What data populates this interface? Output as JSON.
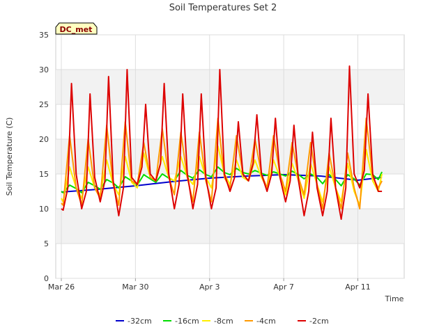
{
  "chart_data": {
    "type": "line",
    "title": "Soil Temperatures Set 2",
    "xlabel": "Time",
    "ylabel": "Soil Temperature (C)",
    "badge": "DC_met",
    "ylim": [
      0,
      35
    ],
    "yticks": [
      0,
      5,
      10,
      15,
      20,
      25,
      30,
      35
    ],
    "xlim": [
      -0.3,
      18.5
    ],
    "xticks": [
      {
        "day": 0,
        "label": "Mar 26"
      },
      {
        "day": 4,
        "label": "Mar 30"
      },
      {
        "day": 8,
        "label": "Apr 3"
      },
      {
        "day": 12,
        "label": "Apr 7"
      },
      {
        "day": 16,
        "label": "Apr 11"
      }
    ],
    "x_units": "days since Mar 26",
    "grid": true,
    "legend_position": "bottom",
    "series": [
      {
        "name": "-32cm",
        "color": "#0000cc",
        "x": [
          0,
          2,
          4,
          6,
          8,
          10,
          12,
          14,
          16,
          17.3
        ],
        "y": [
          12.4,
          12.8,
          13.3,
          13.9,
          14.4,
          14.7,
          14.9,
          14.7,
          14.1,
          14.5
        ]
      },
      {
        "name": "-16cm",
        "color": "#00dd00",
        "x": [
          0.0,
          0.1,
          0.45,
          0.8,
          1.1,
          1.45,
          1.8,
          2.1,
          2.45,
          2.8,
          3.1,
          3.45,
          3.8,
          4.1,
          4.45,
          4.8,
          5.1,
          5.45,
          5.8,
          6.1,
          6.45,
          6.8,
          7.1,
          7.45,
          7.8,
          8.1,
          8.45,
          8.8,
          9.1,
          9.45,
          9.8,
          10.1,
          10.45,
          10.8,
          11.1,
          11.45,
          11.8,
          12.1,
          12.45,
          12.8,
          13.1,
          13.45,
          13.8,
          14.1,
          14.45,
          14.8,
          15.1,
          15.45,
          15.8,
          16.1,
          16.45,
          16.8,
          17.1,
          17.3
        ],
        "y": [
          12.5,
          12.3,
          13.4,
          12.9,
          12.3,
          13.8,
          13.3,
          12.8,
          14.2,
          13.7,
          13.0,
          14.6,
          14.0,
          13.4,
          14.9,
          14.3,
          13.8,
          15.0,
          14.4,
          14.0,
          15.5,
          14.8,
          14.4,
          15.6,
          14.9,
          14.6,
          16.0,
          15.2,
          14.9,
          15.8,
          15.2,
          15.0,
          15.5,
          15.1,
          14.8,
          15.3,
          15.0,
          14.7,
          15.4,
          14.9,
          14.3,
          15.0,
          14.5,
          13.6,
          14.9,
          14.2,
          13.3,
          14.9,
          14.3,
          13.4,
          15.0,
          14.9,
          14.2,
          15.3
        ]
      },
      {
        "name": "-8cm",
        "color": "#ffee00",
        "x": [
          0.0,
          0.1,
          0.45,
          0.8,
          1.1,
          1.45,
          1.8,
          2.1,
          2.45,
          2.8,
          3.1,
          3.45,
          3.8,
          4.1,
          4.45,
          4.8,
          5.1,
          5.45,
          5.8,
          6.1,
          6.45,
          6.8,
          7.1,
          7.45,
          7.8,
          8.1,
          8.45,
          8.8,
          9.1,
          9.45,
          9.8,
          10.1,
          10.45,
          10.8,
          11.1,
          11.45,
          11.8,
          12.1,
          12.45,
          12.8,
          13.1,
          13.45,
          13.8,
          14.1,
          14.45,
          14.8,
          15.1,
          15.45,
          15.8,
          16.1,
          16.45,
          16.8,
          17.1,
          17.3
        ],
        "y": [
          11.5,
          11.0,
          16.0,
          13.0,
          11.5,
          16.0,
          13.0,
          12.0,
          17.0,
          13.5,
          12.0,
          17.5,
          13.8,
          13.0,
          18.0,
          14.5,
          14.0,
          17.5,
          14.5,
          14.0,
          17.5,
          14.5,
          13.5,
          17.5,
          14.5,
          13.0,
          19.0,
          15.0,
          13.5,
          17.0,
          14.5,
          14.0,
          17.0,
          14.5,
          13.0,
          17.0,
          14.5,
          12.0,
          16.5,
          14.0,
          11.5,
          16.5,
          13.5,
          11.0,
          16.0,
          13.0,
          11.0,
          16.5,
          12.5,
          10.5,
          18.5,
          14.0,
          12.5,
          15.0
        ]
      },
      {
        "name": "-4cm",
        "color": "#ff9900",
        "x": [
          0.0,
          0.1,
          0.45,
          0.8,
          1.1,
          1.45,
          1.8,
          2.1,
          2.45,
          2.8,
          3.1,
          3.45,
          3.8,
          4.1,
          4.45,
          4.8,
          5.1,
          5.45,
          5.8,
          6.1,
          6.45,
          6.8,
          7.1,
          7.45,
          7.8,
          8.1,
          8.45,
          8.8,
          9.1,
          9.45,
          9.8,
          10.1,
          10.45,
          10.8,
          11.1,
          11.45,
          11.8,
          12.1,
          12.45,
          12.8,
          13.1,
          13.45,
          13.8,
          14.1,
          14.45,
          14.8,
          15.1,
          15.45,
          15.8,
          16.1,
          16.45,
          16.8,
          17.1,
          17.3
        ],
        "y": [
          10.8,
          10.5,
          20.5,
          13.0,
          10.5,
          20.0,
          13.0,
          11.5,
          22.0,
          13.5,
          10.5,
          22.5,
          14.0,
          13.5,
          19.5,
          14.5,
          14.0,
          21.5,
          14.5,
          12.0,
          21.0,
          14.5,
          11.0,
          21.0,
          14.0,
          11.0,
          23.0,
          14.5,
          13.0,
          20.5,
          15.0,
          14.0,
          20.0,
          15.0,
          13.0,
          20.5,
          15.0,
          12.5,
          19.5,
          14.5,
          12.0,
          19.5,
          13.5,
          10.0,
          18.0,
          13.0,
          10.0,
          18.0,
          13.0,
          10.0,
          23.0,
          14.5,
          13.0,
          14.0
        ]
      },
      {
        "name": "-2cm",
        "color": "#dd0000",
        "x": [
          0.0,
          0.1,
          0.35,
          0.55,
          0.8,
          1.1,
          1.35,
          1.55,
          1.8,
          2.1,
          2.35,
          2.55,
          2.8,
          3.1,
          3.35,
          3.55,
          3.8,
          4.1,
          4.35,
          4.55,
          4.8,
          5.1,
          5.35,
          5.55,
          5.8,
          6.1,
          6.35,
          6.55,
          6.8,
          7.1,
          7.35,
          7.55,
          7.8,
          8.1,
          8.35,
          8.55,
          8.8,
          9.1,
          9.35,
          9.55,
          9.8,
          10.1,
          10.35,
          10.55,
          10.8,
          11.1,
          11.35,
          11.55,
          11.8,
          12.1,
          12.35,
          12.55,
          12.8,
          13.1,
          13.35,
          13.55,
          13.8,
          14.1,
          14.35,
          14.55,
          14.8,
          15.1,
          15.35,
          15.55,
          15.8,
          16.1,
          16.35,
          16.55,
          16.8,
          17.1,
          17.3
        ],
        "y": [
          10.0,
          9.8,
          13.0,
          28.0,
          15.0,
          10.0,
          12.5,
          26.5,
          14.5,
          11.0,
          14.0,
          29.0,
          14.0,
          9.0,
          13.0,
          30.0,
          14.5,
          13.5,
          16.0,
          25.0,
          15.0,
          14.0,
          16.5,
          28.0,
          15.0,
          10.0,
          13.5,
          26.5,
          15.0,
          10.0,
          13.5,
          26.5,
          14.5,
          10.0,
          13.0,
          30.0,
          15.0,
          12.5,
          14.5,
          22.5,
          15.0,
          14.0,
          16.5,
          23.5,
          15.0,
          12.5,
          15.0,
          23.0,
          14.5,
          11.0,
          14.0,
          22.0,
          14.0,
          9.0,
          12.5,
          21.0,
          13.0,
          9.0,
          12.5,
          23.0,
          13.0,
          8.5,
          13.0,
          30.5,
          15.0,
          13.0,
          15.5,
          26.5,
          15.0,
          12.5,
          12.5
        ]
      }
    ]
  }
}
